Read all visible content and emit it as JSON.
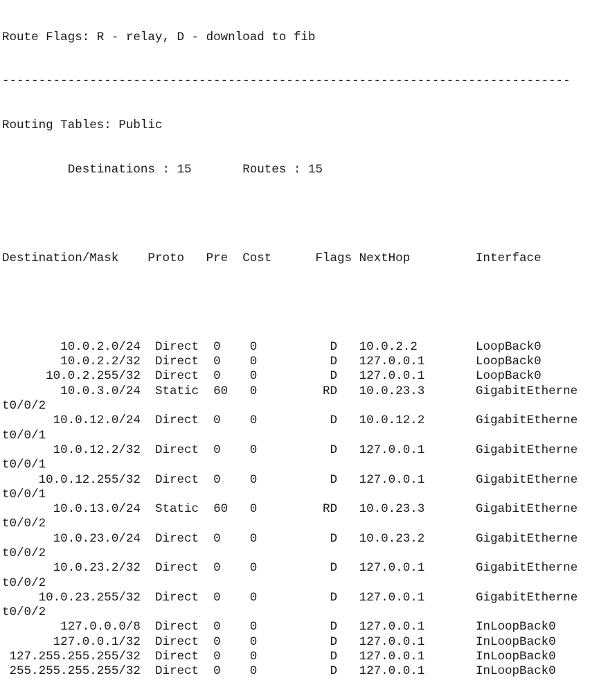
{
  "flags_legend": "Route Flags: R - relay, D - download to fib",
  "separator_char": "-",
  "table_title": "Routing Tables: Public",
  "summary": {
    "destinations_label": "Destinations : 15",
    "routes_label": "Routes : 15"
  },
  "columns": [
    "Destination/Mask",
    "Proto",
    "Pre",
    "Cost",
    "Flags",
    "NextHop",
    "Interface"
  ],
  "rows": [
    {
      "dest": "10.0.2.0/24",
      "proto": "Direct",
      "pre": "0",
      "cost": "0",
      "flags": "D",
      "nexthop": "10.0.2.2",
      "iface": "LoopBack0"
    },
    {
      "dest": "10.0.2.2/32",
      "proto": "Direct",
      "pre": "0",
      "cost": "0",
      "flags": "D",
      "nexthop": "127.0.0.1",
      "iface": "LoopBack0"
    },
    {
      "dest": "10.0.2.255/32",
      "proto": "Direct",
      "pre": "0",
      "cost": "0",
      "flags": "D",
      "nexthop": "127.0.0.1",
      "iface": "LoopBack0"
    },
    {
      "dest": "10.0.3.0/24",
      "proto": "Static",
      "pre": "60",
      "cost": "0",
      "flags": "RD",
      "nexthop": "10.0.23.3",
      "iface": "GigabitEthernet0/0/2"
    },
    {
      "dest": "10.0.12.0/24",
      "proto": "Direct",
      "pre": "0",
      "cost": "0",
      "flags": "D",
      "nexthop": "10.0.12.2",
      "iface": "GigabitEthernet0/0/1"
    },
    {
      "dest": "10.0.12.2/32",
      "proto": "Direct",
      "pre": "0",
      "cost": "0",
      "flags": "D",
      "nexthop": "127.0.0.1",
      "iface": "GigabitEthernet0/0/1"
    },
    {
      "dest": "10.0.12.255/32",
      "proto": "Direct",
      "pre": "0",
      "cost": "0",
      "flags": "D",
      "nexthop": "127.0.0.1",
      "iface": "GigabitEthernet0/0/1"
    },
    {
      "dest": "10.0.13.0/24",
      "proto": "Static",
      "pre": "60",
      "cost": "0",
      "flags": "RD",
      "nexthop": "10.0.23.3",
      "iface": "GigabitEthernet0/0/2"
    },
    {
      "dest": "10.0.23.0/24",
      "proto": "Direct",
      "pre": "0",
      "cost": "0",
      "flags": "D",
      "nexthop": "10.0.23.2",
      "iface": "GigabitEthernet0/0/2"
    },
    {
      "dest": "10.0.23.2/32",
      "proto": "Direct",
      "pre": "0",
      "cost": "0",
      "flags": "D",
      "nexthop": "127.0.0.1",
      "iface": "GigabitEthernet0/0/2"
    },
    {
      "dest": "10.0.23.255/32",
      "proto": "Direct",
      "pre": "0",
      "cost": "0",
      "flags": "D",
      "nexthop": "127.0.0.1",
      "iface": "GigabitEthernet0/0/2"
    },
    {
      "dest": "127.0.0.0/8",
      "proto": "Direct",
      "pre": "0",
      "cost": "0",
      "flags": "D",
      "nexthop": "127.0.0.1",
      "iface": "InLoopBack0"
    },
    {
      "dest": "127.0.0.1/32",
      "proto": "Direct",
      "pre": "0",
      "cost": "0",
      "flags": "D",
      "nexthop": "127.0.0.1",
      "iface": "InLoopBack0"
    },
    {
      "dest": "127.255.255.255/32",
      "proto": "Direct",
      "pre": "0",
      "cost": "0",
      "flags": "D",
      "nexthop": "127.0.0.1",
      "iface": "InLoopBack0"
    },
    {
      "dest": "255.255.255.255/32",
      "proto": "Direct",
      "pre": "0",
      "cost": "0",
      "flags": "D",
      "nexthop": "127.0.0.1",
      "iface": "InLoopBack0"
    }
  ]
}
